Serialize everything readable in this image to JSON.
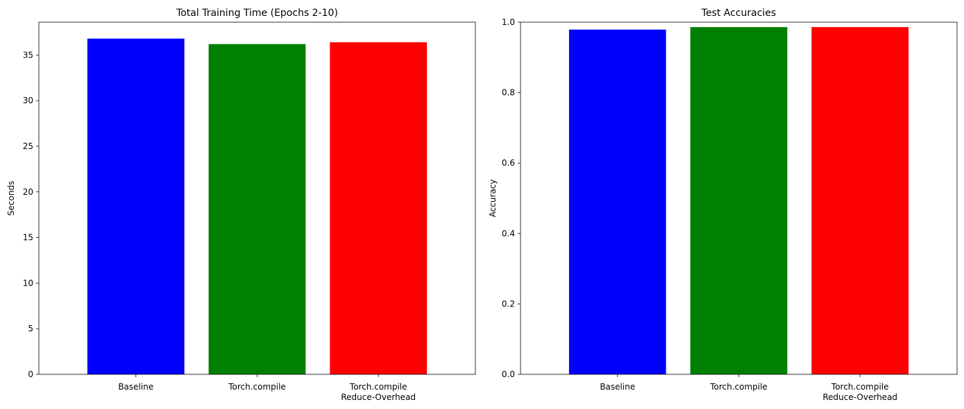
{
  "chart_data": [
    {
      "type": "bar",
      "title": "Total Training Time (Epochs 2-10)",
      "xlabel": "",
      "ylabel": "Seconds",
      "categories": [
        [
          "Baseline"
        ],
        [
          "Torch.compile"
        ],
        [
          "Torch.compile",
          "Reduce-Overhead"
        ]
      ],
      "values": [
        36.8,
        36.2,
        36.4
      ],
      "colors": [
        "#0000ff",
        "#008000",
        "#ff0000"
      ],
      "ylim": [
        0,
        38.6
      ],
      "yticks": [
        0,
        5,
        10,
        15,
        20,
        25,
        30,
        35
      ],
      "ytick_labels": [
        "0",
        "5",
        "10",
        "15",
        "20",
        "25",
        "30",
        "35"
      ],
      "grid": false
    },
    {
      "type": "bar",
      "title": "Test Accuracies",
      "xlabel": "",
      "ylabel": "Accuracy",
      "categories": [
        [
          "Baseline"
        ],
        [
          "Torch.compile"
        ],
        [
          "Torch.compile",
          "Reduce-Overhead"
        ]
      ],
      "values": [
        0.979,
        0.986,
        0.986
      ],
      "colors": [
        "#0000ff",
        "#008000",
        "#ff0000"
      ],
      "ylim": [
        0,
        1.0
      ],
      "yticks": [
        0,
        0.2,
        0.4,
        0.6,
        0.8,
        1.0
      ],
      "ytick_labels": [
        "0.0",
        "0.2",
        "0.4",
        "0.6",
        "0.8",
        "1.0"
      ],
      "grid": false
    }
  ]
}
